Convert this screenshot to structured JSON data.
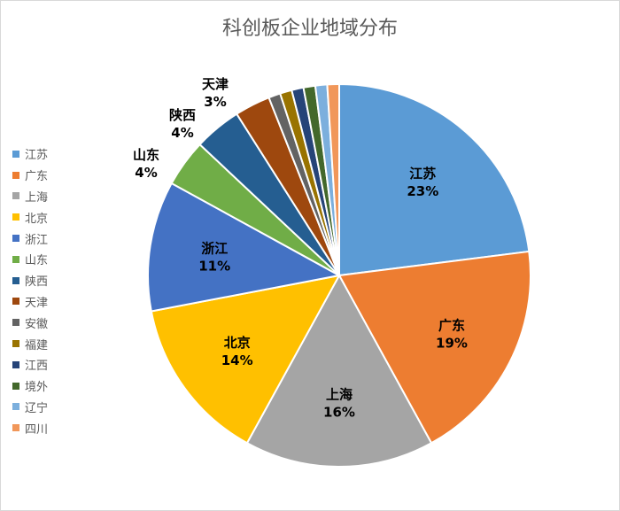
{
  "chart_data": {
    "type": "pie",
    "title": "科创板企业地域分布",
    "legend_position": "left",
    "slices": [
      {
        "name": "江苏",
        "value": 23,
        "label": "23%",
        "color": "#5B9BD5",
        "label_pos": "inside",
        "label_color": "#000000"
      },
      {
        "name": "广东",
        "value": 19,
        "label": "19%",
        "color": "#ED7D31",
        "label_pos": "inside",
        "label_color": "#000000"
      },
      {
        "name": "上海",
        "value": 16,
        "label": "16%",
        "color": "#A5A5A5",
        "label_pos": "inside",
        "label_color": "#000000"
      },
      {
        "name": "北京",
        "value": 14,
        "label": "14%",
        "color": "#FFC000",
        "label_pos": "inside",
        "label_color": "#000000"
      },
      {
        "name": "浙江",
        "value": 11,
        "label": "11%",
        "color": "#4472C4",
        "label_pos": "inside",
        "label_color": "#000000"
      },
      {
        "name": "山东",
        "value": 4,
        "label": "4%",
        "color": "#70AD47",
        "label_pos": "outside",
        "label_color": "#000000"
      },
      {
        "name": "陕西",
        "value": 4,
        "label": "4%",
        "color": "#255E91",
        "label_pos": "outside",
        "label_color": "#000000"
      },
      {
        "name": "天津",
        "value": 3,
        "label": "3%",
        "color": "#9E480E",
        "label_pos": "outside",
        "label_color": "#000000"
      },
      {
        "name": "安徽",
        "value": 1,
        "label": "",
        "color": "#636363",
        "label_pos": "none",
        "label_color": "#000000"
      },
      {
        "name": "福建",
        "value": 1,
        "label": "",
        "color": "#997300",
        "label_pos": "none",
        "label_color": "#000000"
      },
      {
        "name": "江西",
        "value": 1,
        "label": "",
        "color": "#264478",
        "label_pos": "none",
        "label_color": "#000000"
      },
      {
        "name": "境外",
        "value": 1,
        "label": "",
        "color": "#43682B",
        "label_pos": "none",
        "label_color": "#000000"
      },
      {
        "name": "辽宁",
        "value": 1,
        "label": "",
        "color": "#7CAFDD",
        "label_pos": "none",
        "label_color": "#000000"
      },
      {
        "name": "四川",
        "value": 1,
        "label": "",
        "color": "#F1975A",
        "label_pos": "none",
        "label_color": "#000000"
      }
    ]
  }
}
